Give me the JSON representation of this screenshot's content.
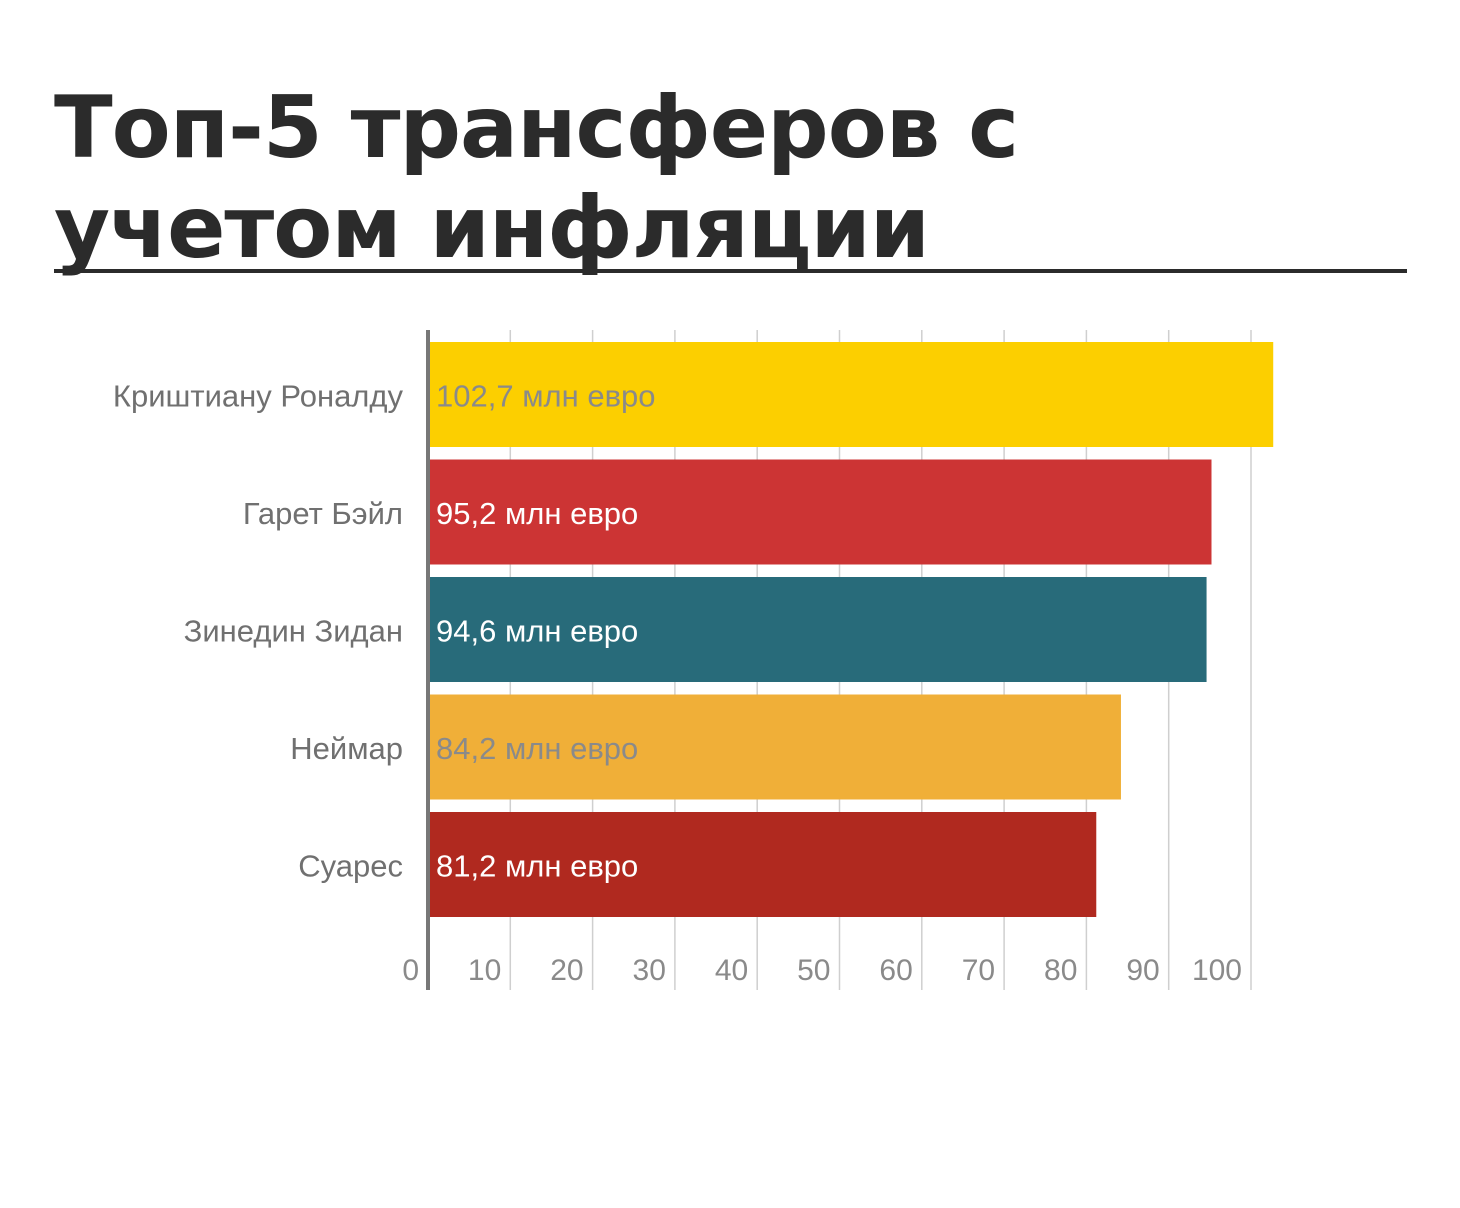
{
  "title": "Топ-5 трансферов с учетом инфляции",
  "colors": {
    "axis": "#777777",
    "grid": "#cfcfcf",
    "category_text": "#707070",
    "tick_text": "#8a8a8a"
  },
  "chart_data": {
    "type": "bar",
    "orientation": "horizontal",
    "title": "Топ-5 трансферов с учетом инфляции",
    "xlabel": "",
    "ylabel": "",
    "xlim": [
      0,
      100
    ],
    "x_ticks": [
      "0",
      "10",
      "20",
      "30",
      "40",
      "50",
      "60",
      "70",
      "80",
      "90",
      "100"
    ],
    "grid": true,
    "categories": [
      "Криштиану Роналду",
      "Гарет Бэйл",
      "Зинедин Зидан",
      "Неймар",
      "Суарес"
    ],
    "values": [
      102.7,
      95.2,
      94.6,
      84.2,
      81.2
    ],
    "data_labels": [
      "102,7 млн евро",
      "95,2 млн евро",
      "94,6 млн евро",
      "84,2 млн евро",
      "81,2 млн евро"
    ],
    "bar_colors": [
      "#fccf00",
      "#cc3434",
      "#286b7a",
      "#f0af38",
      "#b0291f"
    ],
    "label_colors": [
      "#8a8a8a",
      "#ffffff",
      "#ffffff",
      "#8a8a8a",
      "#ffffff"
    ]
  }
}
